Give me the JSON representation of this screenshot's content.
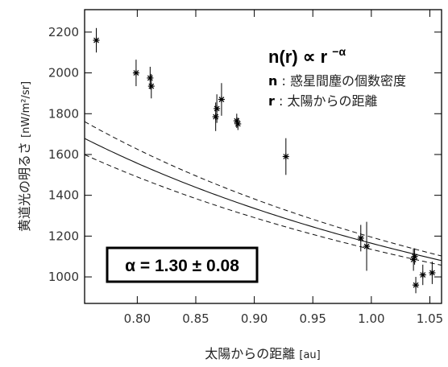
{
  "chart_data": {
    "type": "scatter",
    "xlabel": "太陽からの距離",
    "xlabel_unit": "[au]",
    "ylabel": "黄道光の明るさ",
    "ylabel_unit": "[nW/m²/sr]",
    "xlim": [
      0.755,
      1.06
    ],
    "ylim": [
      870,
      2310
    ],
    "x_ticks": [
      "0.80",
      "0.85",
      "0.90",
      "0.95",
      "1.00",
      "1.05"
    ],
    "x_tick_values": [
      0.8,
      0.85,
      0.9,
      0.95,
      1.0,
      1.05
    ],
    "y_ticks": [
      "1000",
      "1200",
      "1400",
      "1600",
      "1800",
      "2000",
      "2200"
    ],
    "y_tick_values": [
      1000,
      1200,
      1400,
      1600,
      1800,
      2000,
      2200
    ],
    "formula": "n(r) ∝ r",
    "formula_exponent": "−α",
    "legend": [
      {
        "key": "n",
        "sep": " : ",
        "text": "惑星間塵の個数密度"
      },
      {
        "key": "r",
        "sep": " : ",
        "text": "太陽からの距離"
      }
    ],
    "fit_label": "α = 1.30 ± 0.08",
    "fit": {
      "type": "power-law",
      "exponent": -1.3,
      "exponent_uncertainty": 0.08,
      "amplitude_at_1au": 1165,
      "amplitude_uncertainty": 30
    },
    "series": [
      {
        "points": [
          {
            "x": 0.765,
            "y": 2160,
            "err": 60
          },
          {
            "x": 0.799,
            "y": 2000,
            "err": 65
          },
          {
            "x": 0.811,
            "y": 1975,
            "err": 55
          },
          {
            "x": 0.812,
            "y": 1935,
            "err": 60
          },
          {
            "x": 0.867,
            "y": 1785,
            "err": 70
          },
          {
            "x": 0.868,
            "y": 1825,
            "err": 70
          },
          {
            "x": 0.872,
            "y": 1870,
            "err": 80
          },
          {
            "x": 0.885,
            "y": 1765,
            "err": 35
          },
          {
            "x": 0.886,
            "y": 1750,
            "err": 30
          },
          {
            "x": 0.927,
            "y": 1590,
            "err": 90
          },
          {
            "x": 0.991,
            "y": 1190,
            "err": 65
          },
          {
            "x": 0.996,
            "y": 1150,
            "err": 120
          },
          {
            "x": 1.036,
            "y": 1085,
            "err": 55
          },
          {
            "x": 1.037,
            "y": 1100,
            "err": 40
          },
          {
            "x": 1.038,
            "y": 960,
            "err": 40
          },
          {
            "x": 1.044,
            "y": 1010,
            "err": 50
          },
          {
            "x": 1.052,
            "y": 1020,
            "err": 55
          }
        ]
      }
    ],
    "grid": false
  }
}
